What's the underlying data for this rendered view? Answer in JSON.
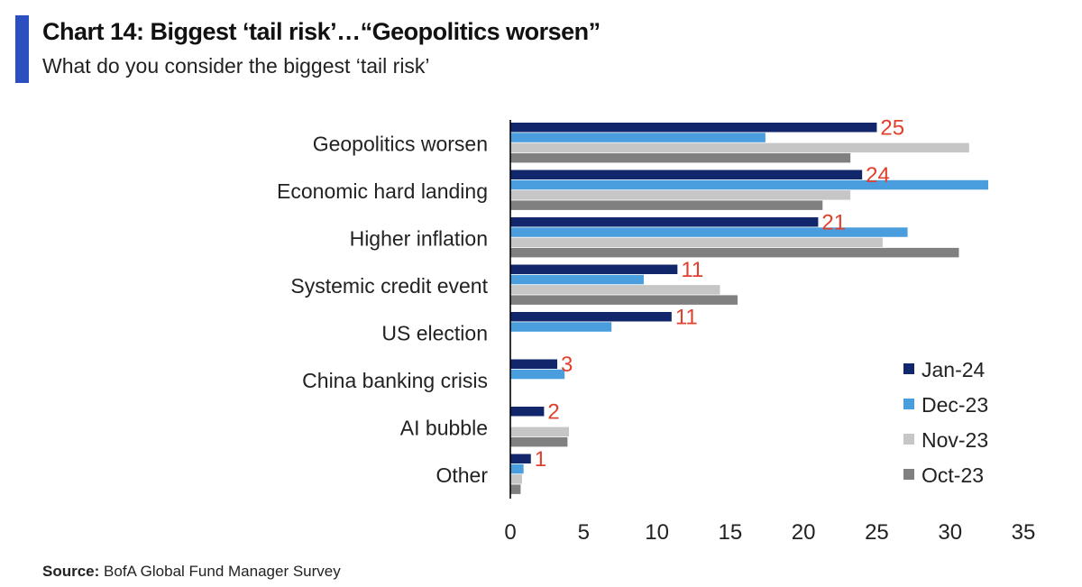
{
  "header": {
    "title": "Chart 14: Biggest ‘tail risk’…“Geopolitics worsen”",
    "subtitle": "What do you consider the biggest ‘tail risk’",
    "accent_color": "#2b4fc0"
  },
  "source": {
    "label": "Source:",
    "text": "BofA Global Fund Manager Survey"
  },
  "chart_data": {
    "type": "bar",
    "orientation": "horizontal",
    "title": "Chart 14: Biggest ‘tail risk’…“Geopolitics worsen”",
    "subtitle": "What do you consider the biggest ‘tail risk’",
    "xlabel": "",
    "ylabel": "",
    "xlim": [
      0,
      35
    ],
    "xticks": [
      0,
      5,
      10,
      15,
      20,
      25,
      30,
      35
    ],
    "grid": false,
    "legend_position": "bottom-right",
    "categories": [
      "Geopolitics worsen",
      "Economic hard landing",
      "Higher inflation",
      "Systemic credit event",
      "US election",
      "China banking crisis",
      "AI bubble",
      "Other"
    ],
    "series": [
      {
        "name": "Jan-24",
        "color": "#12266b",
        "values": [
          25,
          24,
          21,
          11.4,
          11,
          3.2,
          2.3,
          1.4
        ]
      },
      {
        "name": "Dec-23",
        "color": "#4a9ede",
        "values": [
          17.4,
          32.6,
          27.1,
          9.1,
          6.9,
          3.7,
          0,
          0.9
        ]
      },
      {
        "name": "Nov-23",
        "color": "#c6c6c6",
        "values": [
          31.3,
          23.2,
          25.4,
          14.3,
          0,
          0,
          4,
          0.8
        ]
      },
      {
        "name": "Oct-23",
        "color": "#808080",
        "values": [
          23.2,
          21.3,
          30.6,
          15.5,
          0,
          0,
          3.9,
          0.7
        ]
      }
    ],
    "data_labels": [
      "25",
      "24",
      "21",
      "11",
      "11",
      "3",
      "2",
      "1"
    ],
    "data_label_color": "#e0412e"
  }
}
